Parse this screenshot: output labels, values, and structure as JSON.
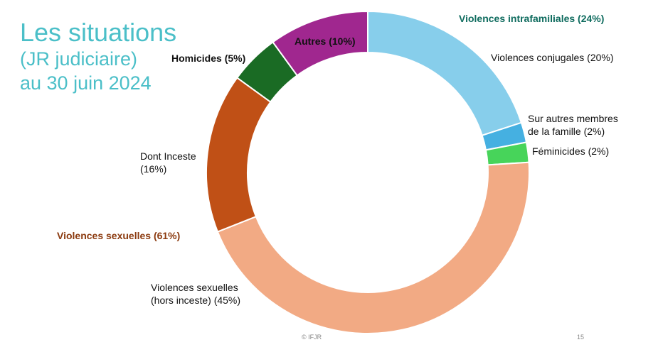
{
  "title": {
    "line1": "Les situations",
    "line2": "(JR judiciaire)",
    "line3": "au 30 juin 2024"
  },
  "footer": {
    "copyright": "© IFJR",
    "page": "15"
  },
  "chart_data": {
    "type": "pie",
    "donut": true,
    "slices": [
      {
        "label": "Violences conjugales (20%)",
        "value": 20,
        "color": "#87ceeb"
      },
      {
        "label": "Sur autres membres de la famille (2%)",
        "value": 2,
        "color": "#45b0e1"
      },
      {
        "label": "Féminicides (2%)",
        "value": 2,
        "color": "#47d45a"
      },
      {
        "label": "Violences sexuelles (hors inceste) (45%)",
        "value": 45,
        "color": "#f2aa84"
      },
      {
        "label": "Dont Inceste (16%)",
        "value": 16,
        "color": "#c05016"
      },
      {
        "label": "Homicides (5%)",
        "value": 5,
        "color": "#1a6b24"
      },
      {
        "label": "Autres (10%)",
        "value": 10,
        "color": "#a0278f"
      }
    ],
    "groups": [
      {
        "label": "Violences intrafamiliales (24%)",
        "color": "#0e6b5e"
      },
      {
        "label": "Violences sexuelles (61%)",
        "color": "#8b3a0f"
      }
    ]
  },
  "labels": {
    "conj": "Violences conjugales (20%)",
    "autresMembres1": "Sur autres membres",
    "autresMembres2": "de la famille (2%)",
    "femi": "Féminicides (2%)",
    "hors1": "Violences sexuelles",
    "hors2": "(hors inceste) (45%)",
    "inc1": "Dont Inceste",
    "inc2": "(16%)",
    "homi": "Homicides (5%)",
    "autres": "Autres (10%)"
  }
}
